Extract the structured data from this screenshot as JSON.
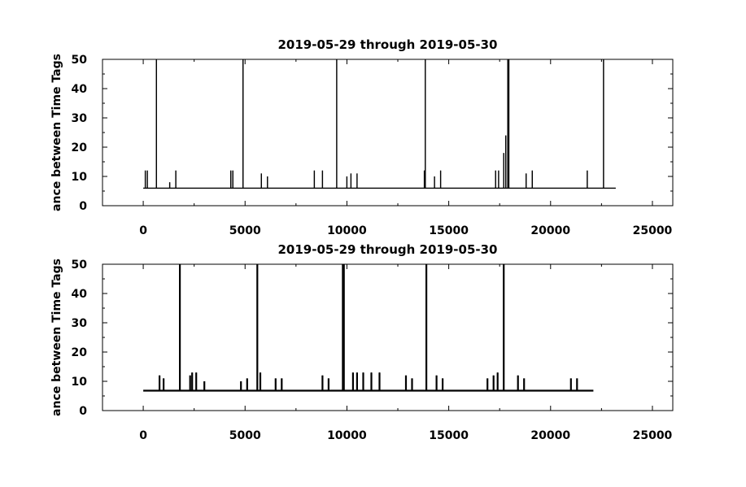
{
  "chart_data": [
    {
      "type": "line",
      "title": "2019-05-29 through 2019-05-30",
      "ylabel": "ance between Time Tags",
      "xlabel": "",
      "xlim": [
        -2000,
        26000
      ],
      "ylim": [
        0,
        50
      ],
      "xticks": [
        0,
        5000,
        10000,
        15000,
        20000,
        25000
      ],
      "xtick_labels": [
        "0",
        "5000",
        "10000",
        "15000",
        "20000",
        "25000"
      ],
      "yticks": [
        0,
        10,
        20,
        30,
        40,
        50
      ],
      "ytick_labels": [
        "0",
        "10",
        "20",
        "30",
        "40",
        "50"
      ],
      "grid": false,
      "series": [
        {
          "baseline": 6,
          "x_start": 0,
          "x_end": 23200,
          "spikes": [
            {
              "x": 100,
              "y": 12
            },
            {
              "x": 200,
              "y": 12
            },
            {
              "x": 650,
              "y": 50
            },
            {
              "x": 1300,
              "y": 8
            },
            {
              "x": 1600,
              "y": 12
            },
            {
              "x": 4300,
              "y": 12
            },
            {
              "x": 4400,
              "y": 12
            },
            {
              "x": 4900,
              "y": 50
            },
            {
              "x": 5800,
              "y": 11
            },
            {
              "x": 6100,
              "y": 10
            },
            {
              "x": 8400,
              "y": 12
            },
            {
              "x": 8800,
              "y": 12
            },
            {
              "x": 9500,
              "y": 50
            },
            {
              "x": 10000,
              "y": 10
            },
            {
              "x": 10200,
              "y": 11
            },
            {
              "x": 10500,
              "y": 11
            },
            {
              "x": 13800,
              "y": 12
            },
            {
              "x": 13850,
              "y": 50
            },
            {
              "x": 14300,
              "y": 10
            },
            {
              "x": 14600,
              "y": 12
            },
            {
              "x": 17300,
              "y": 12
            },
            {
              "x": 17450,
              "y": 12
            },
            {
              "x": 17700,
              "y": 18
            },
            {
              "x": 17800,
              "y": 24
            },
            {
              "x": 17900,
              "y": 50
            },
            {
              "x": 17950,
              "y": 50
            },
            {
              "x": 18800,
              "y": 11
            },
            {
              "x": 19100,
              "y": 12
            },
            {
              "x": 21800,
              "y": 12
            },
            {
              "x": 22600,
              "y": 50
            }
          ]
        }
      ]
    },
    {
      "type": "line",
      "title": "2019-05-29 through 2019-05-30",
      "ylabel": "ance between Time Tags",
      "xlabel": "",
      "xlim": [
        -2000,
        26000
      ],
      "ylim": [
        0,
        50
      ],
      "xticks": [
        0,
        5000,
        10000,
        15000,
        20000,
        25000
      ],
      "xtick_labels": [
        "0",
        "5000",
        "10000",
        "15000",
        "20000",
        "25000"
      ],
      "yticks": [
        0,
        10,
        20,
        30,
        40,
        50
      ],
      "ytick_labels": [
        "0",
        "10",
        "20",
        "30",
        "40",
        "50"
      ],
      "grid": false,
      "series": [
        {
          "baseline": 6.8,
          "x_start": 0,
          "x_end": 22100,
          "spikes": [
            {
              "x": 800,
              "y": 12
            },
            {
              "x": 1000,
              "y": 11
            },
            {
              "x": 1800,
              "y": 50
            },
            {
              "x": 2300,
              "y": 12
            },
            {
              "x": 2400,
              "y": 13
            },
            {
              "x": 2600,
              "y": 13
            },
            {
              "x": 3000,
              "y": 10
            },
            {
              "x": 4800,
              "y": 10
            },
            {
              "x": 5100,
              "y": 11
            },
            {
              "x": 5600,
              "y": 50
            },
            {
              "x": 5750,
              "y": 13
            },
            {
              "x": 6500,
              "y": 11
            },
            {
              "x": 6800,
              "y": 11
            },
            {
              "x": 8800,
              "y": 12
            },
            {
              "x": 9100,
              "y": 11
            },
            {
              "x": 9800,
              "y": 50
            },
            {
              "x": 9850,
              "y": 50
            },
            {
              "x": 10300,
              "y": 13
            },
            {
              "x": 10500,
              "y": 13
            },
            {
              "x": 10800,
              "y": 13
            },
            {
              "x": 11200,
              "y": 13
            },
            {
              "x": 11600,
              "y": 13
            },
            {
              "x": 12900,
              "y": 12
            },
            {
              "x": 13200,
              "y": 11
            },
            {
              "x": 13900,
              "y": 50
            },
            {
              "x": 14400,
              "y": 12
            },
            {
              "x": 14700,
              "y": 11
            },
            {
              "x": 16900,
              "y": 11
            },
            {
              "x": 17200,
              "y": 12
            },
            {
              "x": 17400,
              "y": 13
            },
            {
              "x": 17700,
              "y": 50
            },
            {
              "x": 18400,
              "y": 12
            },
            {
              "x": 18700,
              "y": 11
            },
            {
              "x": 21000,
              "y": 11
            },
            {
              "x": 21300,
              "y": 11
            }
          ]
        }
      ]
    }
  ]
}
